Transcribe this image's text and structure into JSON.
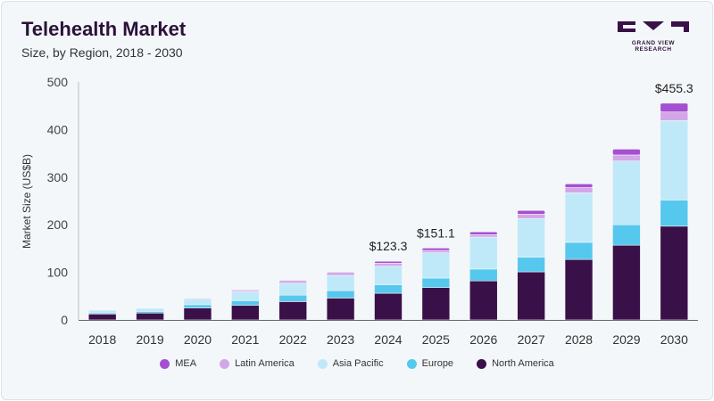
{
  "header": {
    "title": "Telehealth Market",
    "subtitle": "Size, by Region, 2018 - 2030"
  },
  "logo": {
    "text": "GRAND VIEW RESEARCH"
  },
  "chart_data": {
    "type": "bar",
    "stacked": true,
    "ylabel": "Market Size (US$B)",
    "xlabel": "",
    "ylim": [
      0,
      500
    ],
    "yticks": [
      0,
      100,
      200,
      300,
      400,
      500
    ],
    "grid": false,
    "legend_position": "bottom",
    "categories": [
      "2018",
      "2019",
      "2020",
      "2021",
      "2022",
      "2023",
      "2024",
      "2025",
      "2026",
      "2027",
      "2028",
      "2029",
      "2030"
    ],
    "series": [
      {
        "name": "North America",
        "color": "#3a1048",
        "values": [
          12.5,
          14.5,
          25,
          30.5,
          38.6,
          46,
          56,
          68,
          82,
          101,
          127,
          157,
          197
        ]
      },
      {
        "name": "Europe",
        "color": "#56c8ee",
        "values": [
          2.5,
          3.5,
          7,
          10,
          13.5,
          15.5,
          18,
          20,
          25,
          31,
          36,
          43,
          55
        ]
      },
      {
        "name": "Asia Pacific",
        "color": "#bfe9f8",
        "values": [
          5.5,
          6.5,
          12,
          18.5,
          25,
          31.5,
          39,
          53,
          67,
          81,
          104,
          134,
          167
        ]
      },
      {
        "name": "Latin America",
        "color": "#d4a6e8",
        "values": [
          1,
          1,
          1.5,
          3,
          4,
          4.5,
          6,
          5,
          5,
          9,
          11,
          12.5,
          18
        ]
      },
      {
        "name": "MEA",
        "color": "#a54fd2",
        "values": [
          0.5,
          0.5,
          0.5,
          1.5,
          2,
          2.5,
          4.3,
          5.1,
          6,
          8,
          8,
          12.5,
          18.3
        ]
      }
    ],
    "annotations": [
      {
        "category": "2024",
        "text": "$123.3"
      },
      {
        "category": "2025",
        "text": "$151.1"
      },
      {
        "category": "2030",
        "text": "$455.3"
      }
    ],
    "legend_order": [
      "MEA",
      "Latin America",
      "Asia Pacific",
      "Europe",
      "North America"
    ]
  }
}
